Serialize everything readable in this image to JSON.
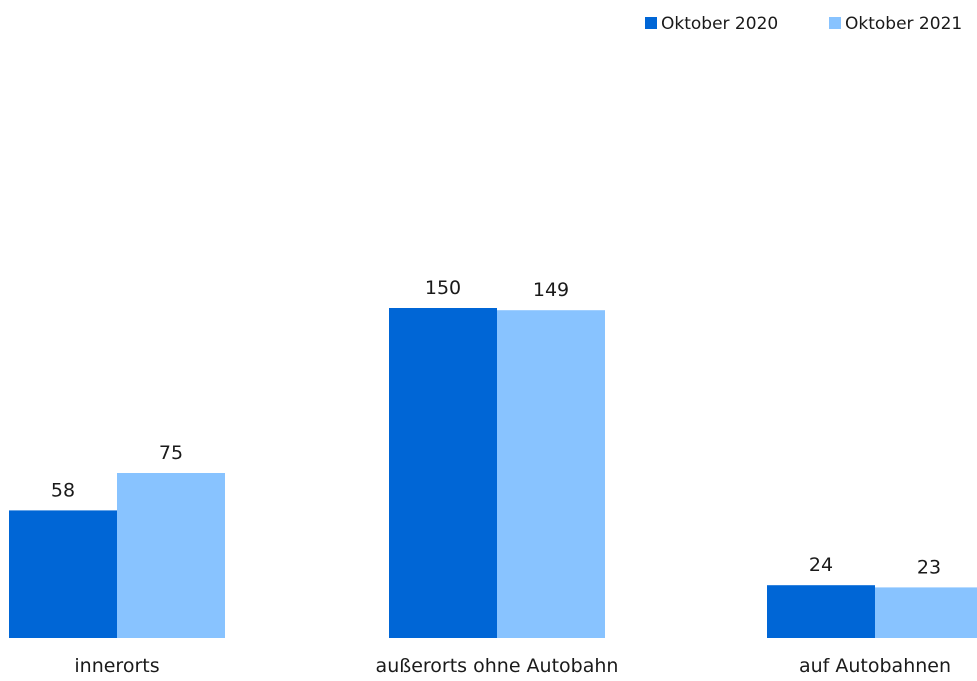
{
  "chart_data": {
    "type": "bar",
    "categories": [
      "innerorts",
      "außerorts ohne Autobahn",
      "auf Autobahnen"
    ],
    "series": [
      {
        "name": "Oktober 2020",
        "values": [
          58,
          150,
          24
        ],
        "color": "#0066d6"
      },
      {
        "name": "Oktober 2021",
        "values": [
          75,
          149,
          23
        ],
        "color": "#88c3ff"
      }
    ],
    "legend_position": "top-right",
    "grid": false,
    "data_labels": true
  }
}
